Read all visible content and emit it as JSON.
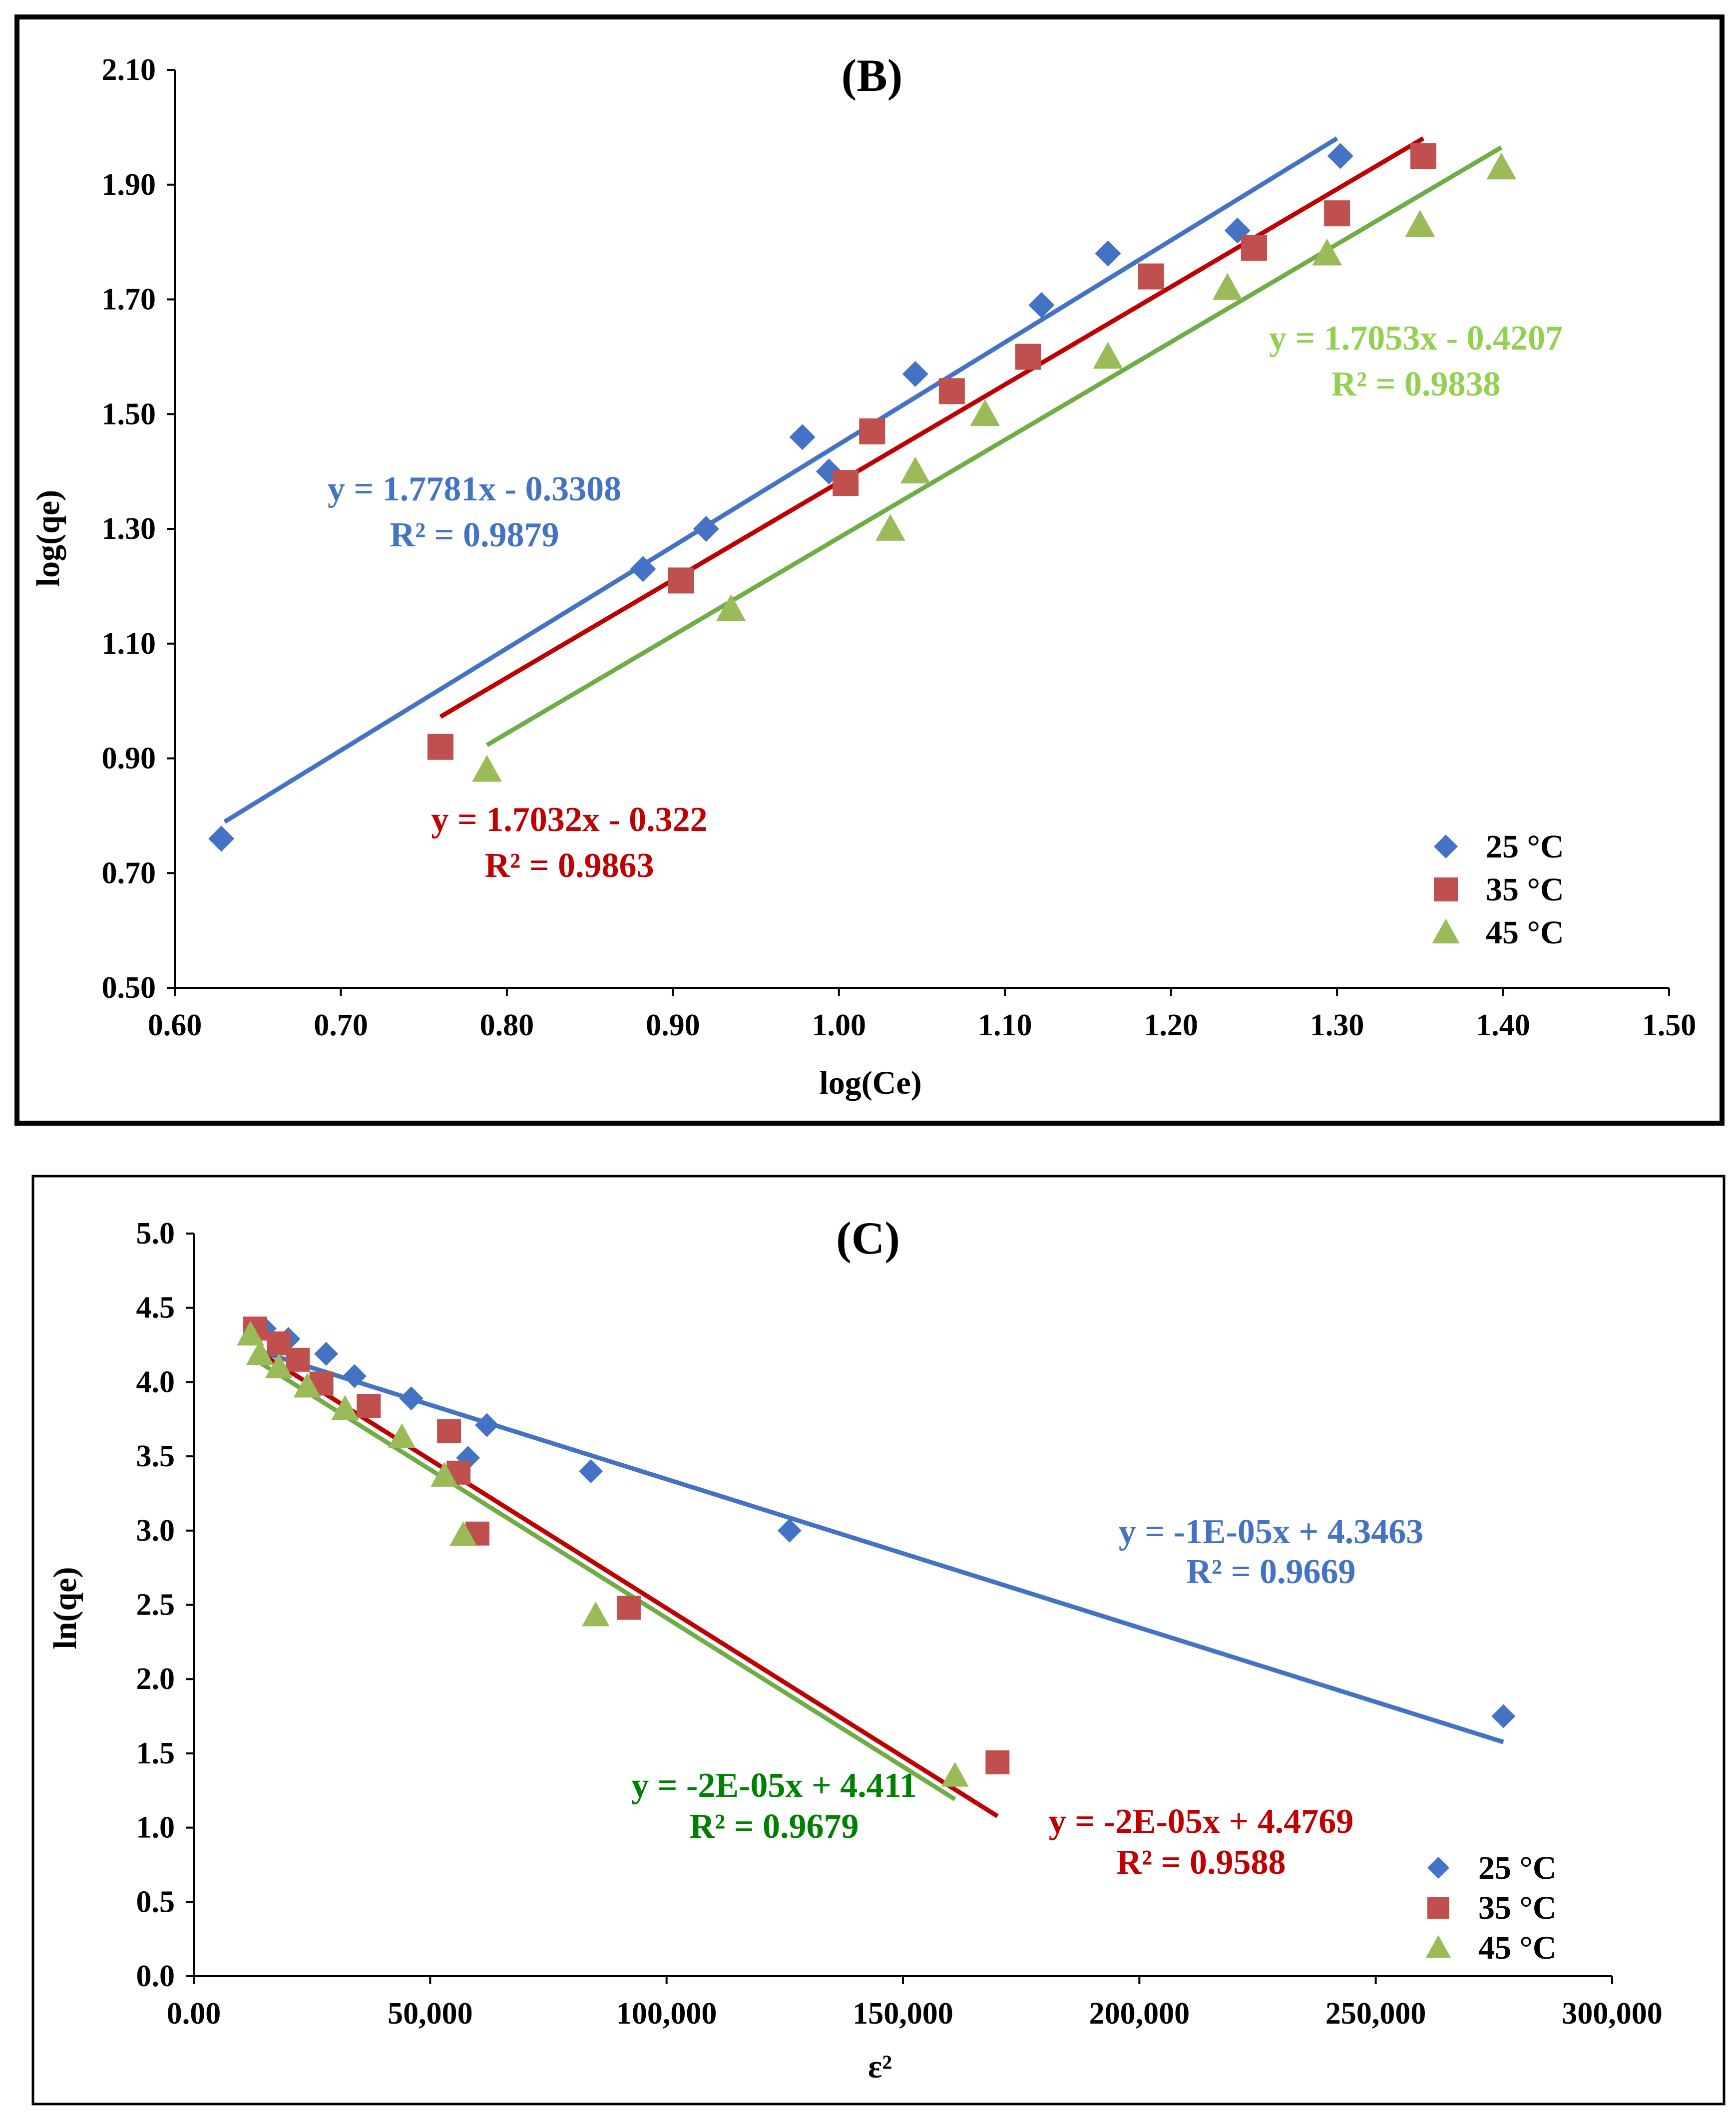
{
  "chart_data": [
    {
      "type": "scatter",
      "title": "(B)",
      "xlabel": "log(Ce)",
      "ylabel": "log(qe)",
      "xlim": [
        0.6,
        1.5
      ],
      "ylim": [
        0.5,
        2.1
      ],
      "xticks": [
        "0.60",
        "0.70",
        "0.80",
        "0.90",
        "1.00",
        "1.10",
        "1.20",
        "1.30",
        "1.40",
        "1.50"
      ],
      "yticks": [
        "0.50",
        "0.70",
        "0.90",
        "1.10",
        "1.30",
        "1.50",
        "1.70",
        "1.90",
        "2.10"
      ],
      "legend_position": "bottom-right",
      "series": [
        {
          "name": "25 °C",
          "color": "#4472C4",
          "marker": "diamond",
          "x": [
            0.628,
            0.882,
            0.92,
            0.978,
            0.994,
            1.046,
            1.122,
            1.162,
            1.24,
            1.302
          ],
          "y": [
            0.76,
            1.23,
            1.3,
            1.46,
            1.4,
            1.57,
            1.69,
            1.78,
            1.82,
            1.95
          ],
          "trendline": {
            "slope": 1.7781,
            "intercept": -0.3308,
            "x_range": [
              0.63,
              1.3
            ],
            "color": "#4472C4"
          },
          "equation": "y = 1.7781x - 0.3308",
          "r2": "R² = 0.9879",
          "label_color": "#4472C4"
        },
        {
          "name": "35 °C",
          "color": "#C0504D",
          "marker": "square",
          "x": [
            0.76,
            0.905,
            1.004,
            1.02,
            1.068,
            1.114,
            1.188,
            1.25,
            1.3,
            1.352
          ],
          "y": [
            0.92,
            1.21,
            1.38,
            1.47,
            1.54,
            1.6,
            1.74,
            1.79,
            1.85,
            1.95
          ],
          "trendline": {
            "slope": 1.7032,
            "intercept": -0.322,
            "x_range": [
              0.76,
              1.352
            ],
            "color": "#C00000"
          },
          "equation": "y = 1.7032x - 0.322",
          "r2": "R² = 0.9863",
          "label_color": "#C00000"
        },
        {
          "name": "45 °C",
          "color": "#9BBB59",
          "marker": "triangle",
          "x": [
            0.788,
            0.935,
            1.031,
            1.046,
            1.088,
            1.162,
            1.234,
            1.294,
            1.35,
            1.399
          ],
          "y": [
            0.88,
            1.16,
            1.3,
            1.4,
            1.5,
            1.6,
            1.72,
            1.78,
            1.83,
            1.93
          ],
          "trendline": {
            "slope": 1.7053,
            "intercept": -0.4207,
            "x_range": [
              0.788,
              1.399
            ],
            "color": "#70AD47"
          },
          "equation": "y = 1.7053x - 0.4207",
          "r2": "R² = 0.9838",
          "label_color": "#92D050"
        }
      ]
    },
    {
      "type": "scatter",
      "title": "(C)",
      "xlabel": "ε²",
      "ylabel": "ln(qe)",
      "xlim": [
        0,
        300000
      ],
      "ylim": [
        0,
        5
      ],
      "xticks": [
        "0.00",
        "50,000",
        "100,000",
        "150,000",
        "200,000",
        "250,000",
        "300,000"
      ],
      "yticks": [
        "0.0",
        "0.5",
        "1.0",
        "1.5",
        "2.0",
        "2.5",
        "3.0",
        "3.5",
        "4.0",
        "4.5",
        "5.0"
      ],
      "legend_position": "bottom-right",
      "series": [
        {
          "name": "25 °C",
          "color": "#4472C4",
          "marker": "diamond",
          "x": [
            15000,
            20000,
            28000,
            34000,
            46000,
            58000,
            62000,
            84000,
            126000,
            277000
          ],
          "y": [
            4.36,
            4.29,
            4.19,
            4.04,
            3.89,
            3.49,
            3.71,
            3.4,
            3.0,
            1.75
          ],
          "trendline": {
            "slope": -1e-05,
            "intercept": 4.3463,
            "x_range": [
              13000,
              277000
            ],
            "color": "#4472C4"
          },
          "equation": "y = -1E-05x + 4.3463",
          "r2": "R² = 0.9669",
          "label_color": "#4472C4"
        },
        {
          "name": "35 °C",
          "color": "#C0504D",
          "marker": "square",
          "x": [
            13000,
            18000,
            22000,
            27000,
            37000,
            54000,
            56000,
            60000,
            92000,
            170000
          ],
          "y": [
            4.36,
            4.26,
            4.15,
            3.99,
            3.84,
            3.67,
            3.39,
            2.98,
            2.48,
            1.44
          ],
          "trendline": {
            "slope": -2e-05,
            "intercept": 4.4769,
            "x_range": [
              13000,
              170000
            ],
            "color": "#C00000"
          },
          "equation": "y = -2E-05x + 4.4769",
          "r2": "R² = 0.9588",
          "label_color": "#C00000"
        },
        {
          "name": "45 °C",
          "color": "#9BBB59",
          "marker": "triangle",
          "x": [
            12000,
            14000,
            18000,
            24000,
            32000,
            44000,
            53000,
            57000,
            85000,
            161000
          ],
          "y": [
            4.32,
            4.19,
            4.1,
            3.97,
            3.82,
            3.63,
            3.37,
            2.97,
            2.43,
            1.35
          ],
          "trendline": {
            "slope": -2e-05,
            "intercept": 4.411,
            "x_range": [
              12000,
              161000
            ],
            "color": "#70AD47"
          },
          "equation": "y = -2E-05x + 4.411",
          "r2": "R² = 0.9679",
          "label_color": "#008000"
        }
      ]
    }
  ]
}
